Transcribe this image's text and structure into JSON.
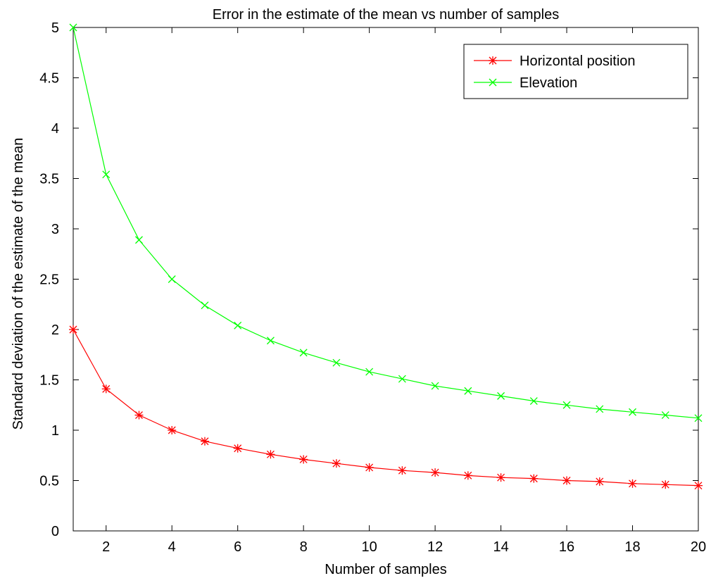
{
  "chart_data": {
    "type": "line",
    "title": "Error in the estimate of the mean vs number of samples",
    "xlabel": "Number of samples",
    "ylabel": "Standard deviation of the estimate of the mean",
    "xlim": [
      1,
      20
    ],
    "ylim": [
      0,
      5
    ],
    "xticks": [
      2,
      4,
      6,
      8,
      10,
      12,
      14,
      16,
      18,
      20
    ],
    "yticks": [
      0,
      0.5,
      1,
      1.5,
      2,
      2.5,
      3,
      3.5,
      4,
      4.5,
      5
    ],
    "ytick_labels": [
      "0",
      "0.5",
      "1",
      "1.5",
      "2",
      "2.5",
      "3",
      "3.5",
      "4",
      "4.5",
      "5"
    ],
    "grid": false,
    "legend_position": "top-right",
    "x": [
      1,
      2,
      3,
      4,
      5,
      6,
      7,
      8,
      9,
      10,
      11,
      12,
      13,
      14,
      15,
      16,
      17,
      18,
      19,
      20
    ],
    "series": [
      {
        "name": "Horizontal position",
        "color": "#ff0000",
        "marker": "asterisk",
        "values": [
          2.0,
          1.41,
          1.15,
          1.0,
          0.89,
          0.82,
          0.76,
          0.71,
          0.67,
          0.63,
          0.6,
          0.58,
          0.55,
          0.53,
          0.52,
          0.5,
          0.49,
          0.47,
          0.46,
          0.45
        ]
      },
      {
        "name": "Elevation",
        "color": "#00ff00",
        "marker": "x",
        "values": [
          5.0,
          3.54,
          2.89,
          2.5,
          2.24,
          2.04,
          1.89,
          1.77,
          1.67,
          1.58,
          1.51,
          1.44,
          1.39,
          1.34,
          1.29,
          1.25,
          1.21,
          1.18,
          1.15,
          1.12
        ]
      }
    ]
  }
}
